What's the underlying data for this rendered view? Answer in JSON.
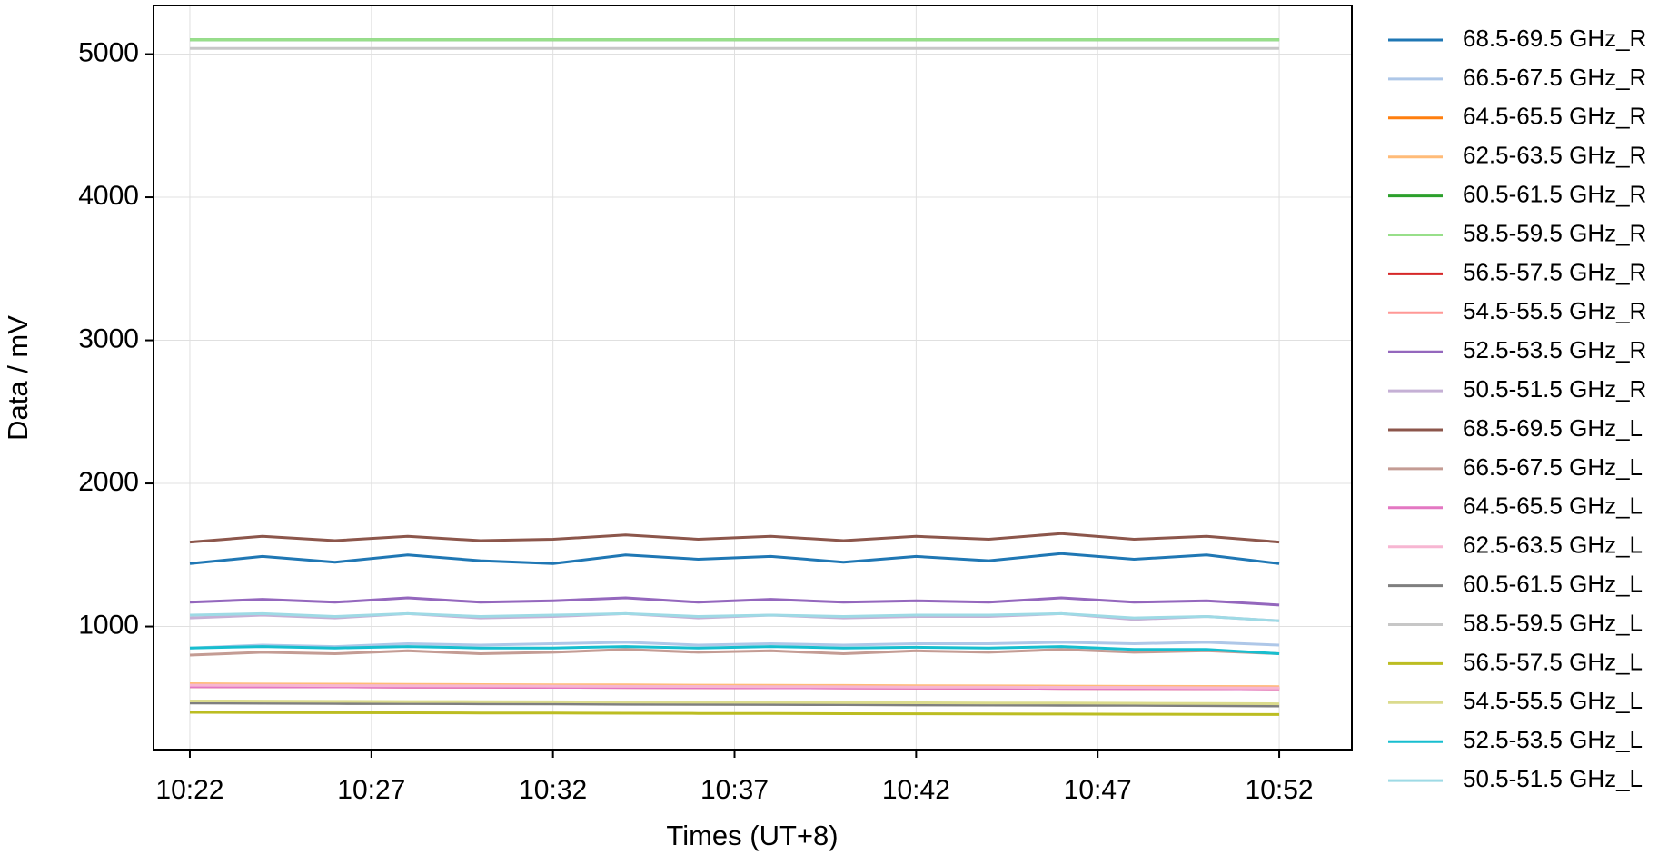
{
  "chart_data": {
    "type": "line",
    "xlabel": "Times (UT+8)",
    "ylabel": "Data / mV",
    "x": [
      "10:22",
      "10:24",
      "10:26",
      "10:28",
      "10:30",
      "10:32",
      "10:34",
      "10:36",
      "10:38",
      "10:40",
      "10:42",
      "10:44",
      "10:46",
      "10:48",
      "10:50",
      "10:52"
    ],
    "xlim": [
      "10:21",
      "10:54"
    ],
    "xticks": [
      "10:22",
      "10:27",
      "10:32",
      "10:37",
      "10:42",
      "10:47",
      "10:52"
    ],
    "ylim": [
      140,
      5340
    ],
    "yticks": [
      1000,
      2000,
      3000,
      4000,
      5000
    ],
    "grid": true,
    "legend": "outside right",
    "series": [
      {
        "name": "68.5-69.5 GHz_R",
        "color": "#1f77b4",
        "values": [
          1440,
          1490,
          1450,
          1500,
          1460,
          1440,
          1500,
          1470,
          1490,
          1450,
          1490,
          1460,
          1510,
          1470,
          1500,
          1440
        ]
      },
      {
        "name": "66.5-67.5 GHz_R",
        "color": "#aec7e8",
        "values": [
          850,
          870,
          860,
          880,
          870,
          880,
          890,
          870,
          880,
          870,
          880,
          880,
          890,
          880,
          890,
          870
        ]
      },
      {
        "name": "64.5-65.5 GHz_R",
        "color": "#ff7f0e",
        "values": [
          595,
          594,
          592,
          591,
          590,
          588,
          587,
          586,
          584,
          583,
          582,
          580,
          579,
          578,
          576,
          575
        ]
      },
      {
        "name": "62.5-63.5 GHz_R",
        "color": "#ffbb78",
        "values": [
          600,
          598,
          597,
          596,
          594,
          593,
          592,
          590,
          589,
          588,
          586,
          585,
          584,
          582,
          581,
          580
        ]
      },
      {
        "name": "60.5-61.5 GHz_R",
        "color": "#2ca02c",
        "values": [
          5100,
          5100,
          5100,
          5100,
          5100,
          5100,
          5100,
          5100,
          5100,
          5100,
          5100,
          5100,
          5100,
          5100,
          5100,
          5100
        ]
      },
      {
        "name": "58.5-59.5 GHz_R",
        "color": "#98df8a",
        "values": [
          5100,
          5100,
          5100,
          5100,
          5100,
          5100,
          5100,
          5100,
          5100,
          5100,
          5100,
          5100,
          5100,
          5100,
          5100,
          5100
        ]
      },
      {
        "name": "56.5-57.5 GHz_R",
        "color": "#d62728",
        "values": [
          580,
          579,
          578,
          577,
          576,
          575,
          574,
          573,
          572,
          571,
          570,
          569,
          568,
          567,
          566,
          565
        ]
      },
      {
        "name": "54.5-55.5 GHz_R",
        "color": "#ff9896",
        "values": [
          585,
          584,
          583,
          582,
          581,
          580,
          579,
          578,
          577,
          576,
          575,
          574,
          573,
          572,
          571,
          570
        ]
      },
      {
        "name": "52.5-53.5 GHz_R",
        "color": "#9467bd",
        "values": [
          1170,
          1190,
          1170,
          1200,
          1170,
          1180,
          1200,
          1170,
          1190,
          1170,
          1180,
          1170,
          1200,
          1170,
          1180,
          1150
        ]
      },
      {
        "name": "50.5-51.5 GHz_R",
        "color": "#c5b0d5",
        "values": [
          1060,
          1080,
          1060,
          1090,
          1060,
          1070,
          1090,
          1060,
          1080,
          1060,
          1070,
          1070,
          1090,
          1050,
          1070,
          1040
        ]
      },
      {
        "name": "68.5-69.5 GHz_L",
        "color": "#8c564b",
        "values": [
          1590,
          1630,
          1600,
          1630,
          1600,
          1610,
          1640,
          1610,
          1630,
          1600,
          1630,
          1610,
          1650,
          1610,
          1630,
          1590
        ]
      },
      {
        "name": "66.5-67.5 GHz_L",
        "color": "#c49c94",
        "values": [
          800,
          820,
          810,
          830,
          810,
          820,
          840,
          820,
          830,
          810,
          830,
          820,
          840,
          820,
          830,
          810
        ]
      },
      {
        "name": "64.5-65.5 GHz_L",
        "color": "#e377c2",
        "values": [
          580,
          579,
          578,
          577,
          576,
          575,
          574,
          573,
          572,
          571,
          570,
          569,
          568,
          567,
          566,
          565
        ]
      },
      {
        "name": "62.5-63.5 GHz_L",
        "color": "#f7b6d2",
        "values": [
          590,
          589,
          587,
          586,
          585,
          584,
          582,
          581,
          580,
          579,
          577,
          576,
          575,
          574,
          572,
          570
        ]
      },
      {
        "name": "60.5-61.5 GHz_L",
        "color": "#7f7f7f",
        "values": [
          465,
          464,
          462,
          461,
          460,
          459,
          457,
          456,
          455,
          454,
          452,
          451,
          450,
          449,
          447,
          445
        ]
      },
      {
        "name": "58.5-59.5 GHz_L",
        "color": "#c7c7c7",
        "values": [
          5040,
          5040,
          5040,
          5040,
          5040,
          5040,
          5040,
          5040,
          5040,
          5040,
          5040,
          5040,
          5040,
          5040,
          5040,
          5040
        ]
      },
      {
        "name": "56.5-57.5 GHz_L",
        "color": "#bcbd22",
        "values": [
          400,
          399,
          398,
          397,
          396,
          395,
          394,
          393,
          392,
          391,
          390,
          389,
          388,
          387,
          386,
          385
        ]
      },
      {
        "name": "54.5-55.5 GHz_L",
        "color": "#dbdb8d",
        "values": [
          480,
          479,
          477,
          476,
          475,
          474,
          472,
          471,
          470,
          469,
          467,
          466,
          465,
          464,
          462,
          460
        ]
      },
      {
        "name": "52.5-53.5 GHz_L",
        "color": "#17becf",
        "values": [
          850,
          860,
          850,
          860,
          850,
          850,
          860,
          850,
          860,
          850,
          855,
          850,
          860,
          840,
          840,
          810
        ]
      },
      {
        "name": "50.5-51.5 GHz_L",
        "color": "#9edae5",
        "values": [
          1080,
          1090,
          1070,
          1090,
          1070,
          1080,
          1090,
          1070,
          1080,
          1070,
          1080,
          1080,
          1090,
          1060,
          1070,
          1040
        ]
      }
    ]
  }
}
